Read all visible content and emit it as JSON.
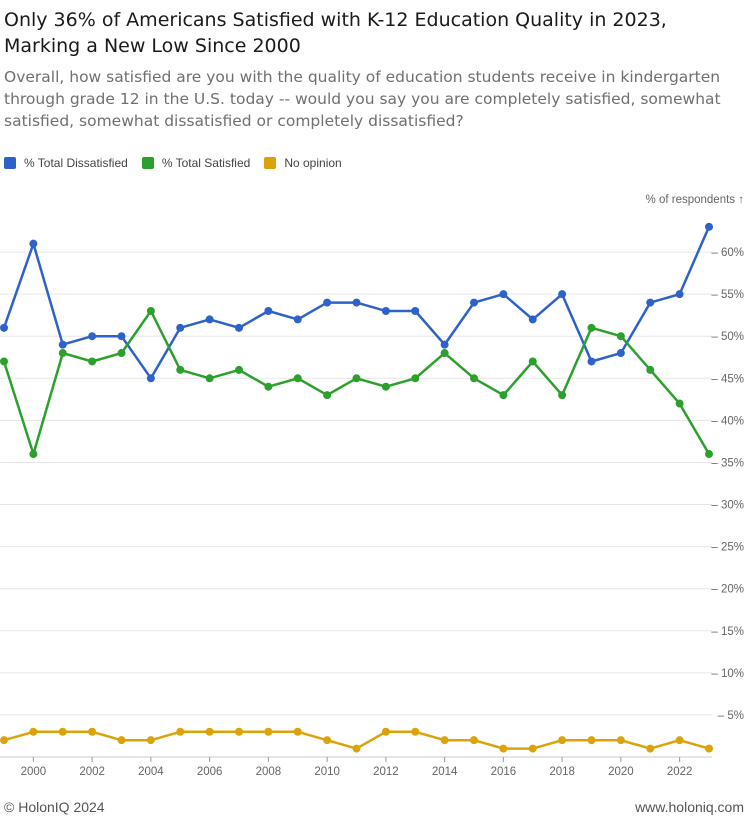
{
  "chart_data": {
    "type": "line",
    "title": "Only 36% of Americans Satisfied with K-12 Education Quality in 2023, Marking a New Low Since 2000",
    "subtitle": "Overall, how satisfied are you with the quality of education students receive in kindergarten through grade 12 in the U.S. today -- would you say you are completely satisfied, somewhat satisfied, somewhat dissatisfied or completely dissatisfied?",
    "ylabel": "% of respondents ↑",
    "xlabel": "",
    "ylim": [
      0,
      65
    ],
    "y_ticks": [
      5,
      10,
      15,
      20,
      25,
      30,
      35,
      40,
      45,
      50,
      55,
      60
    ],
    "y_tick_labels": [
      "5%",
      "10%",
      "15%",
      "20%",
      "25%",
      "30%",
      "35%",
      "40%",
      "45%",
      "50%",
      "55%",
      "60%"
    ],
    "x_ticks": [
      2000,
      2002,
      2004,
      2006,
      2008,
      2010,
      2012,
      2014,
      2016,
      2018,
      2020,
      2022
    ],
    "x_tick_labels": [
      "2000",
      "2002",
      "2004",
      "2006",
      "2008",
      "2010",
      "2012",
      "2014",
      "2016",
      "2018",
      "2020",
      "2022"
    ],
    "x": [
      1999,
      2000,
      2001,
      2002,
      2003,
      2004,
      2005,
      2006,
      2007,
      2008,
      2009,
      2010,
      2011,
      2012,
      2013,
      2014,
      2015,
      2016,
      2017,
      2018,
      2019,
      2020,
      2021,
      2022,
      2023
    ],
    "series": [
      {
        "name": "% Total Dissatisfied",
        "color": "#2e62c9",
        "values": [
          51,
          61,
          49,
          50,
          50,
          45,
          51,
          52,
          51,
          53,
          52,
          54,
          54,
          53,
          53,
          49,
          54,
          55,
          52,
          55,
          47,
          48,
          54,
          55,
          63
        ]
      },
      {
        "name": "% Total Satisfied",
        "color": "#2ca02c",
        "values": [
          47,
          36,
          48,
          47,
          48,
          53,
          46,
          45,
          46,
          44,
          45,
          43,
          45,
          44,
          45,
          48,
          45,
          43,
          47,
          43,
          51,
          50,
          46,
          42,
          36
        ]
      },
      {
        "name": "No opinion",
        "color": "#dba30b",
        "values": [
          2,
          3,
          3,
          3,
          2,
          2,
          3,
          3,
          3,
          3,
          3,
          2,
          1,
          3,
          3,
          2,
          2,
          1,
          1,
          2,
          2,
          2,
          1,
          2,
          1
        ]
      }
    ]
  },
  "footer": {
    "copyright": "© HolonIQ 2024",
    "website": "www.holoniq.com"
  }
}
